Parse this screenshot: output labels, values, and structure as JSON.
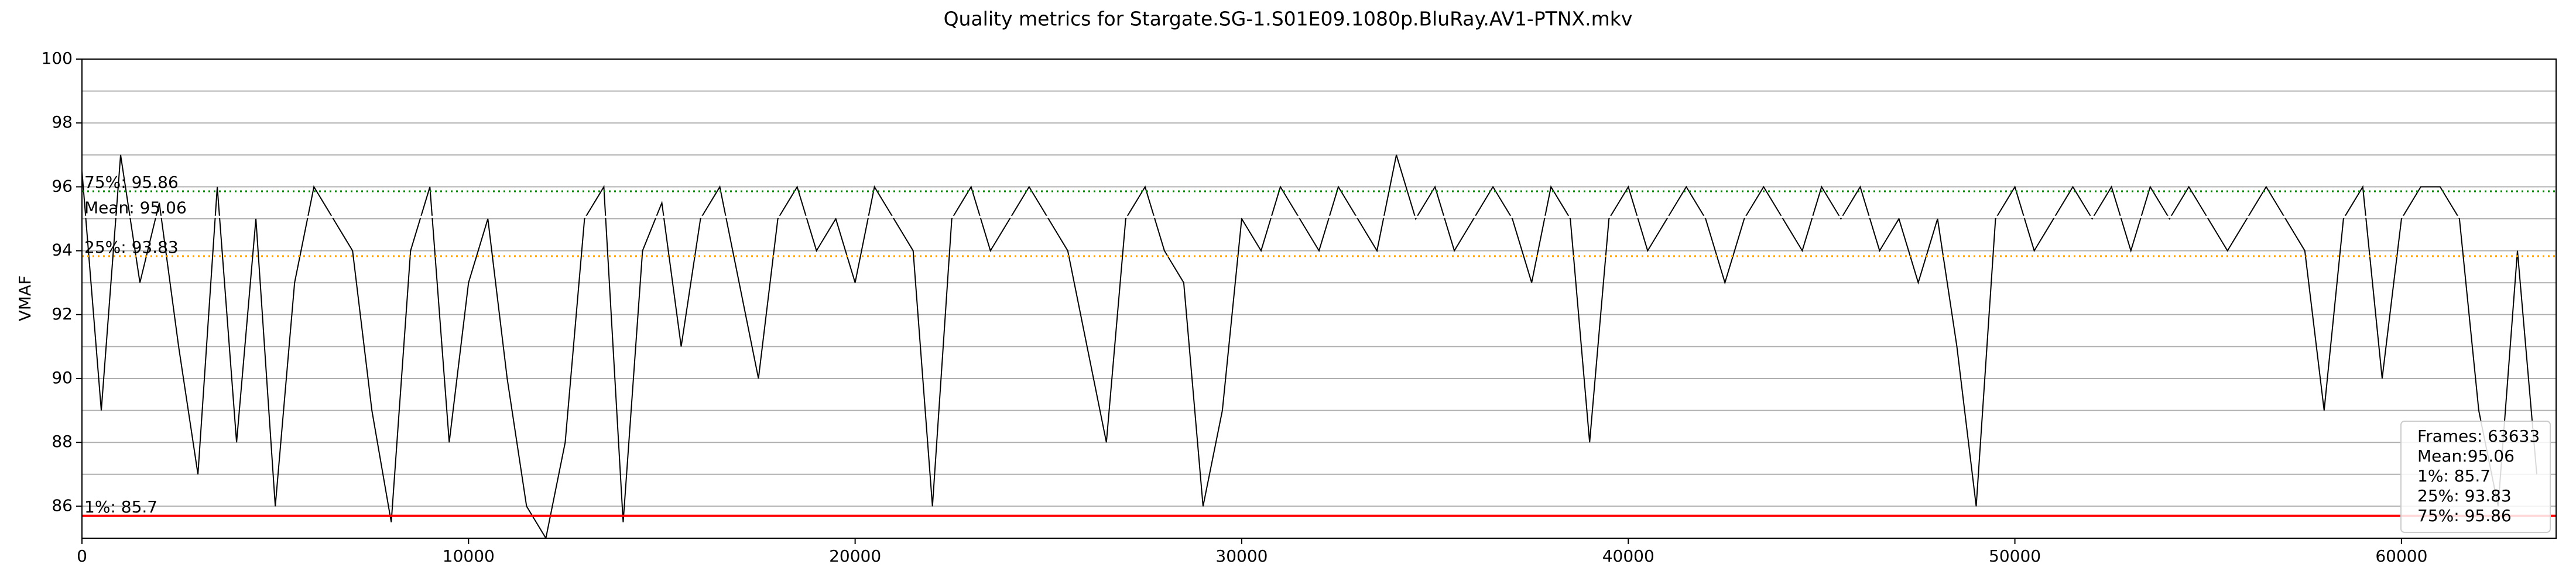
{
  "chart_data": {
    "type": "line",
    "title": "Quality metrics for Stargate.SG-1.S01E09.1080p.BluRay.AV1-PTNX.mkv",
    "ylabel": "VMAF",
    "xlim": [
      0,
      64000
    ],
    "ylim": [
      85,
      100
    ],
    "xticks": [
      0,
      10000,
      20000,
      30000,
      40000,
      50000,
      60000
    ],
    "yticks": [
      86,
      88,
      90,
      92,
      94,
      96,
      98,
      100
    ],
    "minor_grid": [
      87,
      89,
      91,
      93,
      95,
      97,
      99
    ],
    "grid": true,
    "x": [
      0,
      500,
      1000,
      1500,
      2000,
      2500,
      3000,
      3500,
      4000,
      4500,
      5000,
      5500,
      6000,
      6500,
      7000,
      7500,
      8000,
      8500,
      9000,
      9500,
      10000,
      10500,
      11000,
      11500,
      12000,
      12500,
      13000,
      13500,
      14000,
      14500,
      15000,
      15500,
      16000,
      16500,
      17000,
      17500,
      18000,
      18500,
      19000,
      19500,
      20000,
      20500,
      21000,
      21500,
      22000,
      22500,
      23000,
      23500,
      24000,
      24500,
      25000,
      25500,
      26000,
      26500,
      27000,
      27500,
      28000,
      28500,
      29000,
      29500,
      30000,
      30500,
      31000,
      31500,
      32000,
      32500,
      33000,
      33500,
      34000,
      34500,
      35000,
      35500,
      36000,
      36500,
      37000,
      37500,
      38000,
      38500,
      39000,
      39500,
      40000,
      40500,
      41000,
      41500,
      42000,
      42500,
      43000,
      43500,
      44000,
      44500,
      45000,
      45500,
      46000,
      46500,
      47000,
      47500,
      48000,
      48500,
      49000,
      49500,
      50000,
      50500,
      51000,
      51500,
      52000,
      52500,
      53000,
      53500,
      54000,
      54500,
      55000,
      55500,
      56000,
      56500,
      57000,
      57500,
      58000,
      58500,
      59000,
      59500,
      60000,
      60500,
      61000,
      61500,
      62000,
      62500,
      63000,
      63500
    ],
    "series": [
      {
        "color": "#000000",
        "values": [
          96.5,
          89,
          97,
          93,
          95.5,
          91,
          87,
          96,
          88,
          95,
          86,
          93,
          96,
          95,
          94,
          89,
          85.5,
          94,
          96,
          88,
          93,
          95,
          90,
          86,
          85,
          88,
          95,
          96,
          85.5,
          94,
          95.5,
          91,
          95,
          96,
          93,
          90,
          95,
          96,
          94,
          95,
          93,
          96,
          95,
          94,
          86,
          95,
          96,
          94,
          95,
          96,
          95,
          94,
          91,
          88,
          95,
          96,
          94,
          93,
          86,
          89,
          95,
          94,
          96,
          95,
          94,
          96,
          95,
          94,
          97,
          95,
          96,
          94,
          95,
          96,
          95,
          93,
          96,
          95,
          88,
          95,
          96,
          94,
          95,
          96,
          95,
          93,
          95,
          96,
          95,
          94,
          96,
          95,
          96,
          94,
          95,
          93,
          95,
          91,
          86,
          95,
          96,
          94,
          95,
          96,
          95,
          96,
          94,
          96,
          95,
          96,
          95,
          94,
          95,
          96,
          95,
          94,
          89,
          95,
          96,
          90,
          95,
          96,
          96,
          95,
          89,
          86,
          94,
          87
        ]
      }
    ],
    "stats": [
      {
        "label": "1%: 85.7",
        "value": 85.7,
        "color": "#ff0000",
        "style": "solid"
      },
      {
        "label": "25%: 93.83",
        "value": 93.83,
        "color": "#ffa500",
        "style": "dotted"
      },
      {
        "label": "Mean: 95.06",
        "value": 95.06,
        "color": "#ffffff",
        "style": "solid"
      },
      {
        "label": "75%: 95.86",
        "value": 95.86,
        "color": "#008000",
        "style": "dotted"
      }
    ],
    "legend_corner": "lower right",
    "legend": [
      "Frames: 63633",
      "Mean:95.06",
      "1%: 85.7",
      "25%: 93.83",
      "75%: 95.86"
    ]
  }
}
